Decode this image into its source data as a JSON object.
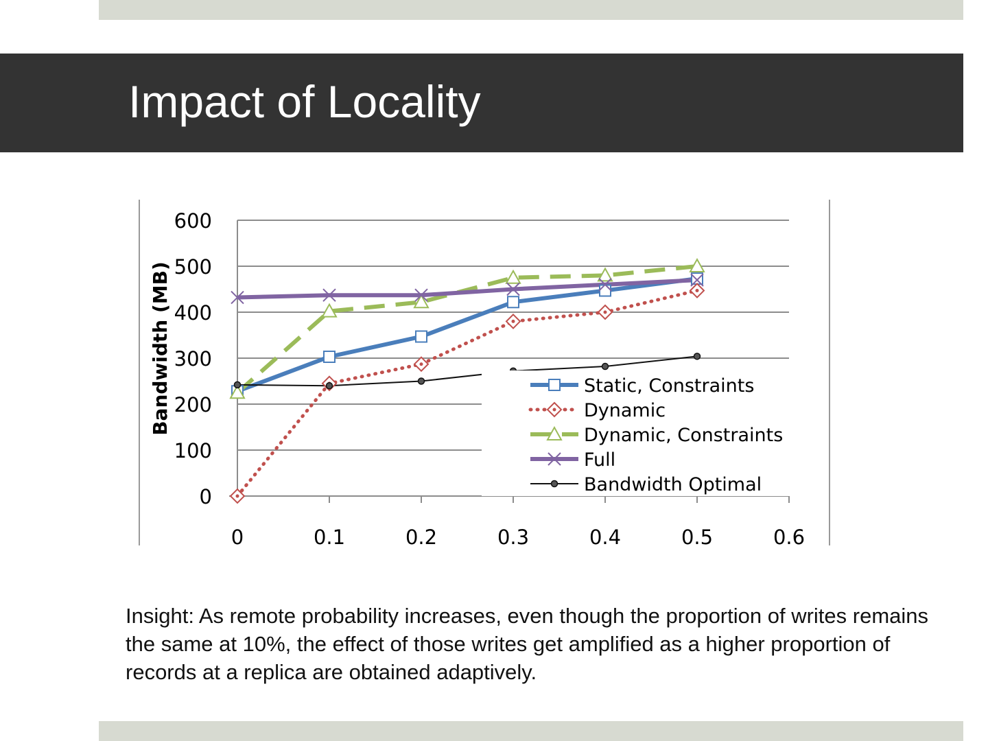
{
  "slide": {
    "title": "Impact of Locality",
    "insight": "Insight: As remote probability increases, even though the proportion of writes remains the same at 10%, the effect of those writes get amplified as a higher proportion of records at a replica are obtained adaptively."
  },
  "chart_data": {
    "type": "line",
    "title": "",
    "xlabel": "",
    "ylabel": "Bandwidth (MB)",
    "xlim": [
      0,
      0.6
    ],
    "ylim": [
      0,
      600
    ],
    "x_ticks": [
      "0",
      "0.1",
      "0.2",
      "0.3",
      "0.4",
      "0.5",
      "0.6"
    ],
    "y_ticks": [
      "0",
      "100",
      "200",
      "300",
      "400",
      "500",
      "600"
    ],
    "grid": "horizontal",
    "legend_position": "bottom-right",
    "x": [
      0,
      0.1,
      0.2,
      0.3,
      0.4,
      0.5
    ],
    "series": [
      {
        "name": "Static, Constraints",
        "values": [
          228,
          303,
          347,
          422,
          447,
          473
        ],
        "color": "#4a7ebb",
        "style": "solid",
        "marker": "square"
      },
      {
        "name": "Dynamic",
        "values": [
          0,
          245,
          287,
          380,
          400,
          447
        ],
        "color": "#c0504d",
        "style": "dotted",
        "marker": "diamond"
      },
      {
        "name": "Dynamic, Constraints",
        "values": [
          225,
          402,
          422,
          475,
          480,
          500
        ],
        "color": "#9bbb59",
        "style": "dashed",
        "marker": "triangle"
      },
      {
        "name": "Full",
        "values": [
          432,
          437,
          437,
          450,
          460,
          470
        ],
        "color": "#8064a2",
        "style": "solid",
        "marker": "x"
      },
      {
        "name": "Bandwidth Optimal",
        "values": [
          242,
          240,
          250,
          272,
          282,
          304
        ],
        "color": "#111111",
        "style": "thin",
        "marker": "circle"
      }
    ]
  }
}
